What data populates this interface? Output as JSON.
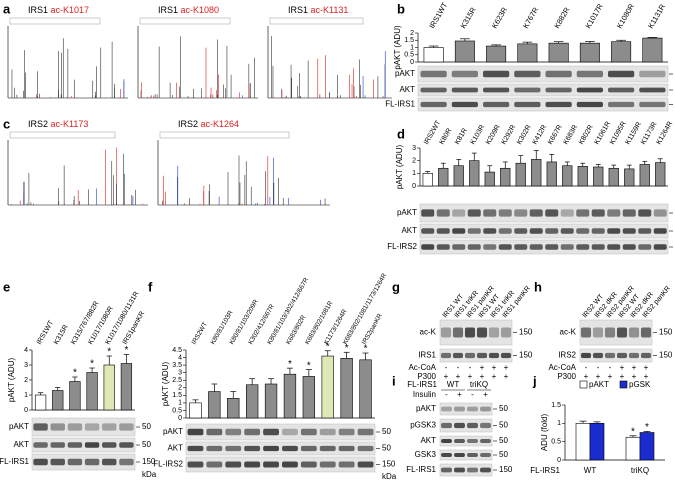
{
  "chart_data": [
    {
      "panel": "b",
      "type": "bar",
      "ylabel": "pAKT (ADU)",
      "categories": [
        "IRS1WT",
        "K315R",
        "K623R",
        "K767R",
        "K882R",
        "K1017R",
        "K1080R",
        "K1131R"
      ],
      "category_colors": [
        "#000000",
        "#e02020",
        "#e02020",
        "#e02020",
        "#e02020",
        "#e02020",
        "#e02020",
        "#e02020"
      ],
      "values": [
        1.0,
        1.45,
        1.1,
        1.25,
        1.3,
        1.3,
        1.4,
        1.65
      ],
      "errors": [
        0.1,
        0.15,
        0.08,
        0.12,
        0.1,
        0.12,
        0.1,
        0.05
      ],
      "bar_colors": [
        "#ffffff",
        "#8c8c8c",
        "#8c8c8c",
        "#8c8c8c",
        "#8c8c8c",
        "#8c8c8c",
        "#8c8c8c",
        "#8c8c8c"
      ],
      "ylim": [
        0,
        2
      ],
      "yticks": [
        0,
        0.5,
        1,
        1.5,
        2
      ],
      "blot": {
        "rows": [
          "pAKT",
          "AKT",
          "FL-IRS1"
        ],
        "markers": [
          "50",
          "50",
          "150"
        ],
        "unit": "kDa"
      }
    },
    {
      "panel": "d",
      "type": "bar",
      "ylabel": "pAKT (ADU)",
      "categories": [
        "IRS2WT",
        "K80R",
        "K81R",
        "K103R",
        "K209R",
        "K292R",
        "K302R",
        "K412R",
        "K667R",
        "K683R",
        "K802R",
        "K1061R",
        "K1095R",
        "K1159R",
        "K1173R",
        "K1264R"
      ],
      "category_colors": [
        "#000000",
        "#e02020",
        "#e02020",
        "#e02020",
        "#e02020",
        "#e02020",
        "#e02020",
        "#e02020",
        "#e02020",
        "#e02020",
        "#e02020",
        "#e02020",
        "#e02020",
        "#e02020",
        "#e02020",
        "#e02020"
      ],
      "values": [
        1.0,
        1.4,
        1.6,
        2.0,
        1.1,
        1.4,
        1.8,
        2.1,
        1.9,
        1.6,
        1.55,
        1.5,
        1.4,
        1.35,
        1.7,
        1.85
      ],
      "errors": [
        0.15,
        0.4,
        0.5,
        0.6,
        0.5,
        0.5,
        0.6,
        0.7,
        0.6,
        0.3,
        0.25,
        0.2,
        0.25,
        0.3,
        0.25,
        0.3
      ],
      "bar_colors": [
        "#ffffff",
        "#8c8c8c",
        "#8c8c8c",
        "#8c8c8c",
        "#8c8c8c",
        "#8c8c8c",
        "#8c8c8c",
        "#8c8c8c",
        "#8c8c8c",
        "#8c8c8c",
        "#8c8c8c",
        "#8c8c8c",
        "#8c8c8c",
        "#8c8c8c",
        "#8c8c8c",
        "#8c8c8c"
      ],
      "ylim": [
        0,
        3
      ],
      "yticks": [
        0,
        1,
        2,
        3
      ],
      "blot": {
        "rows": [
          "pAKT",
          "AKT",
          "FL-IRS2"
        ],
        "markers": [
          "50",
          "50",
          "150"
        ],
        "unit": "kDa"
      }
    },
    {
      "panel": "e",
      "type": "bar",
      "ylabel": "pAKT (ADU)",
      "categories": [
        "IRS1WT",
        "K315R",
        "K315/767/882R",
        "K1017/1080R",
        "K1017/1080/1131R",
        "IRS1panKR"
      ],
      "category_colors": [
        "#000000",
        "#e02020",
        "#e02020",
        "#e02020",
        "#e02020",
        "#e02020"
      ],
      "values": [
        1.0,
        1.3,
        1.9,
        2.5,
        3.0,
        3.1
      ],
      "errors": [
        0.15,
        0.2,
        0.3,
        0.3,
        0.6,
        0.6
      ],
      "significance": [
        null,
        null,
        "*",
        "*",
        "*",
        "*"
      ],
      "bar_colors": [
        "#ffffff",
        "#8c8c8c",
        "#8c8c8c",
        "#8c8c8c",
        "#dfe9b8",
        "#8c8c8c"
      ],
      "ylim": [
        0,
        4
      ],
      "yticks": [
        0,
        1,
        2,
        3,
        4
      ],
      "blot": {
        "rows": [
          "pAKT",
          "AKT",
          "FL-IRS1"
        ],
        "markers": [
          "50",
          "50",
          "150"
        ],
        "unit": "kDa"
      }
    },
    {
      "panel": "f",
      "type": "bar",
      "ylabel": "pAKT (ADU)",
      "categories": [
        "IRS2WT",
        "K80/81/103R",
        "K80/81/103/209R",
        "K302/412/667R",
        "K80/81/103/302/412/667R",
        "K683/802R",
        "K683/802/1081R",
        "K1173/1264R",
        "K683/802/1081/1173/1264R",
        "IRS2panKR"
      ],
      "category_colors": [
        "#000000",
        "#e02020",
        "#e02020",
        "#e02020",
        "#e02020",
        "#e02020",
        "#e02020",
        "#e02020",
        "#e02020",
        "#e02020"
      ],
      "values": [
        1.0,
        1.75,
        1.3,
        2.2,
        2.25,
        2.9,
        2.75,
        4.1,
        3.95,
        3.85
      ],
      "errors": [
        0.2,
        0.5,
        0.45,
        0.4,
        0.35,
        0.4,
        0.45,
        0.35,
        0.4,
        0.45
      ],
      "significance": [
        null,
        null,
        null,
        null,
        null,
        "*",
        "*",
        "*",
        "*",
        "*"
      ],
      "bar_colors": [
        "#ffffff",
        "#8c8c8c",
        "#8c8c8c",
        "#8c8c8c",
        "#8c8c8c",
        "#8c8c8c",
        "#8c8c8c",
        "#dfe9b8",
        "#8c8c8c",
        "#8c8c8c"
      ],
      "ylim": [
        0,
        4.5
      ],
      "yticks": [
        0,
        0.5,
        1,
        1.5,
        2,
        2.5,
        3,
        3.5,
        4,
        4.5
      ],
      "blot": {
        "rows": [
          "pAKT",
          "AKT",
          "FL-IRS2"
        ],
        "markers": [
          "50",
          "50",
          "150"
        ],
        "unit": "kDa"
      }
    },
    {
      "panel": "j",
      "type": "grouped_bar",
      "ylabel": "ADU (fold)",
      "xlabel": "FL-IRS1",
      "categories": [
        "WT",
        "triKQ"
      ],
      "series": [
        {
          "name": "pAKT",
          "color": "#ffffff",
          "values": [
            1.0,
            0.62
          ],
          "errors": [
            0.06,
            0.04
          ],
          "significance": [
            null,
            "*"
          ]
        },
        {
          "name": "pGSK",
          "color": "#1a2ccf",
          "values": [
            1.0,
            0.75
          ],
          "errors": [
            0.04,
            0.03
          ],
          "significance": [
            null,
            "*"
          ]
        }
      ],
      "ylim": [
        0,
        1.5
      ],
      "yticks": [
        0,
        0.5,
        1,
        1.5
      ]
    }
  ],
  "spectra_panels": [
    {
      "panel": "a",
      "spectra": [
        {
          "protein": "IRS1",
          "site": "ac-K1017"
        },
        {
          "protein": "IRS1",
          "site": "ac-K1080"
        },
        {
          "protein": "IRS1",
          "site": "ac-K1131"
        }
      ]
    },
    {
      "panel": "c",
      "spectra": [
        {
          "protein": "IRS2",
          "site": "ac-K1173"
        },
        {
          "protein": "IRS2",
          "site": "ac-K1264"
        }
      ]
    }
  ],
  "blot_panels": [
    {
      "panel": "g",
      "lanes": [
        "IRS1 WT",
        "IRS1 triKR",
        "IRS1 panKR",
        "IRS1 WT",
        "IRS1 triKR",
        "IRS1 panKR"
      ],
      "rows": [
        "ac-K",
        "IRS1"
      ],
      "markers": [
        "150",
        "150"
      ],
      "conditions": [
        {
          "name": "Ac-CoA",
          "signs": [
            "-",
            "-",
            "-",
            "+",
            "+",
            "+"
          ]
        },
        {
          "name": "P300",
          "signs": [
            "+",
            "+",
            "+",
            "+",
            "+",
            "+"
          ]
        }
      ]
    },
    {
      "panel": "h",
      "lanes": [
        "IRS2 WT",
        "IRS2 dKR",
        "IRS2 panKR",
        "IRS2 WT",
        "IRS2 dKR",
        "IRS2 panKR"
      ],
      "rows": [
        "ac-K",
        "IRS2"
      ],
      "markers": [
        "150",
        "150"
      ],
      "conditions": [
        {
          "name": "Ac-CoA",
          "signs": [
            "-",
            "-",
            "-",
            "+",
            "+",
            "+"
          ]
        },
        {
          "name": "P300",
          "signs": [
            "+",
            "+",
            "+",
            "+",
            "+",
            "+"
          ]
        }
      ]
    },
    {
      "panel": "i",
      "header": "FL-IRS1",
      "groups": [
        "WT",
        "triKQ"
      ],
      "rows": [
        "pAKT",
        "pGSK3",
        "AKT",
        "GSK3",
        "FL-IRS1"
      ],
      "markers": [
        "50",
        "50",
        "50",
        "50",
        "150"
      ],
      "conditions": [
        {
          "name": "Insulin",
          "signs": [
            "-",
            "+",
            "-",
            "+"
          ]
        }
      ]
    }
  ]
}
